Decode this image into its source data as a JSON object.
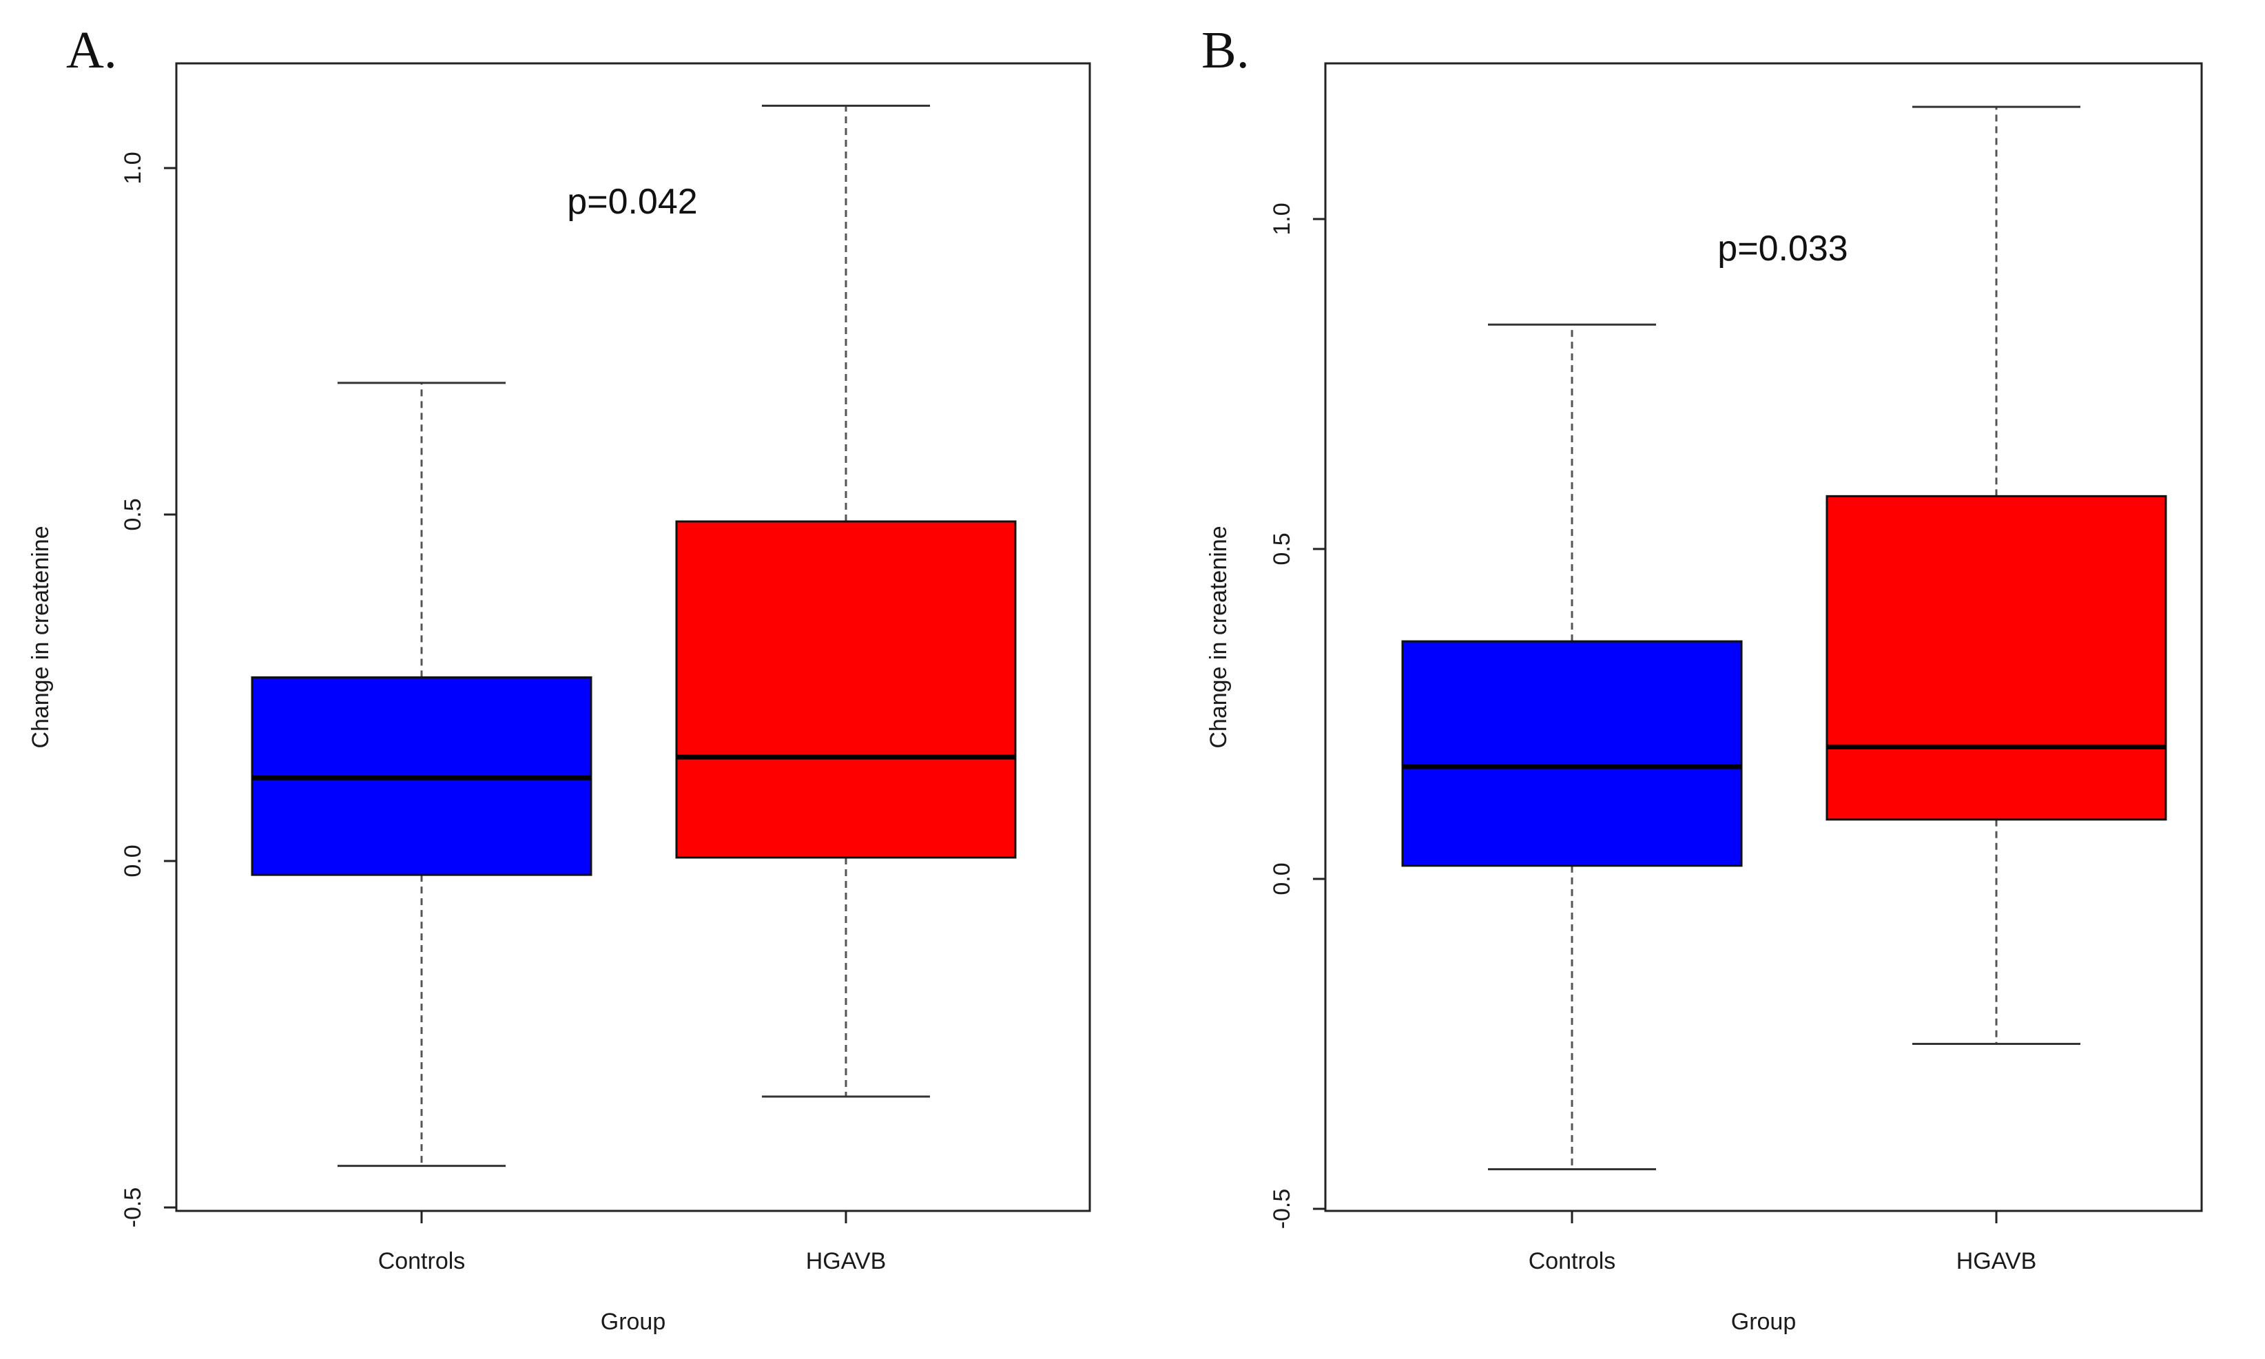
{
  "chart_data": [
    {
      "panel_label": "A.",
      "type": "box",
      "xlabel": "Group",
      "ylabel": "Change in createnine",
      "ylim": [
        -0.5,
        1.15
      ],
      "yticks": [
        -0.5,
        0.0,
        0.5,
        1.0
      ],
      "ytick_labels": [
        "-0.5",
        "0.0",
        "0.5",
        "1.0"
      ],
      "annotation": "p=0.042",
      "boxes": [
        {
          "category": "Controls",
          "color": "#0000ff",
          "whisker_low": -0.44,
          "q1": -0.02,
          "median": 0.12,
          "q3": 0.265,
          "whisker_high": 0.69
        },
        {
          "category": "HGAVB",
          "color": "#ff0000",
          "whisker_low": -0.34,
          "q1": 0.005,
          "median": 0.15,
          "q3": 0.49,
          "whisker_high": 1.09
        }
      ]
    },
    {
      "panel_label": "B.",
      "type": "box",
      "xlabel": "Group",
      "ylabel": "Change in createnine",
      "ylim": [
        -0.5,
        1.2
      ],
      "yticks": [
        -0.5,
        0.0,
        0.5,
        1.0
      ],
      "ytick_labels": [
        "-0.5",
        "0.0",
        "0.5",
        "1.0"
      ],
      "annotation": "p=0.033",
      "boxes": [
        {
          "category": "Controls",
          "color": "#0000ff",
          "whisker_low": -0.44,
          "q1": 0.02,
          "median": 0.17,
          "q3": 0.36,
          "whisker_high": 0.84
        },
        {
          "category": "HGAVB",
          "color": "#ff0000",
          "whisker_low": -0.25,
          "q1": 0.09,
          "median": 0.2,
          "q3": 0.58,
          "whisker_high": 1.17
        }
      ]
    }
  ]
}
